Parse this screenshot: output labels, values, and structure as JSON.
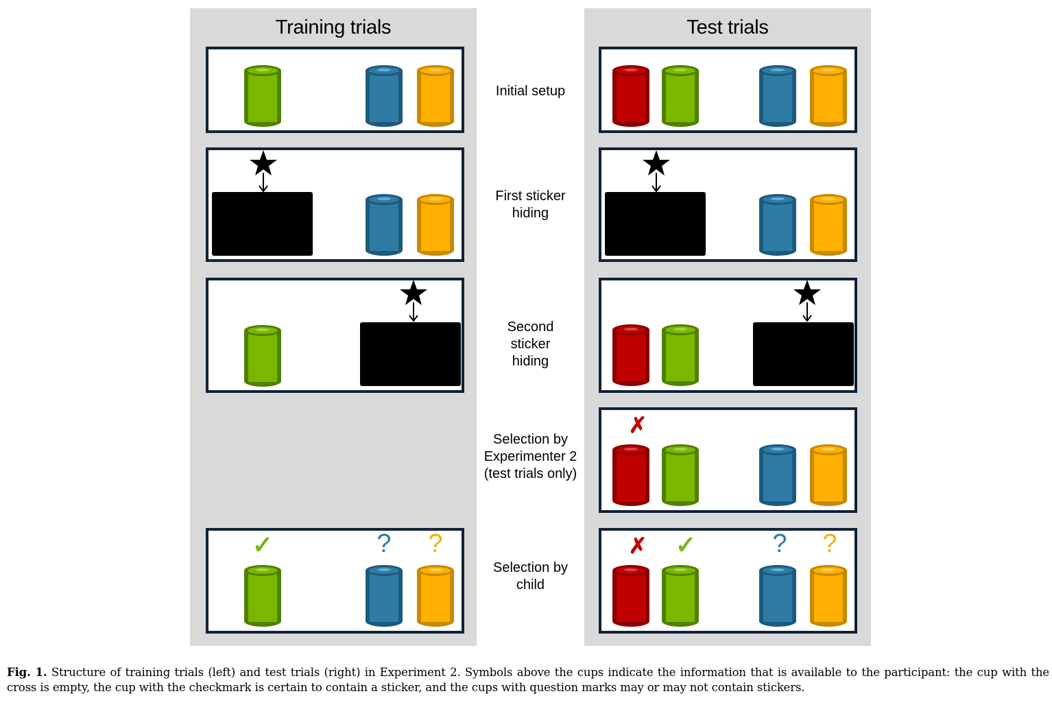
{
  "columns": {
    "left_title": "Training trials",
    "right_title": "Test trials"
  },
  "stages": [
    {
      "label": "Initial setup"
    },
    {
      "label": "First sticker\nhiding"
    },
    {
      "label": "Second\nsticker\nhiding"
    },
    {
      "label": "Selection by\nExperimenter 2\n(test trials only)"
    },
    {
      "label": "Selection by\nchild"
    }
  ],
  "cup_colors": {
    "red": {
      "body": "#c00000",
      "dark": "#8b0000",
      "rim": "#d94a4a"
    },
    "green": {
      "body": "#7ab800",
      "dark": "#4f8000",
      "rim": "#a6d646"
    },
    "blue": {
      "body": "#2e7ca6",
      "dark": "#1c5a7c",
      "rim": "#6aaed0"
    },
    "orange": {
      "body": "#ffb000",
      "dark": "#c88800",
      "rim": "#ffd060"
    }
  },
  "marker_symbols": {
    "cross": "✗",
    "check": "✓",
    "question": "?"
  },
  "caption": {
    "label": "Fig. 1.",
    "text": "Structure of training trials (left) and test trials (right) in Experiment 2. Symbols above the cups indicate the information that is available to the participant: the cup with the cross is empty, the cup with the checkmark is certain to contain a sticker, and the cups with question marks may or may not contain stickers."
  }
}
